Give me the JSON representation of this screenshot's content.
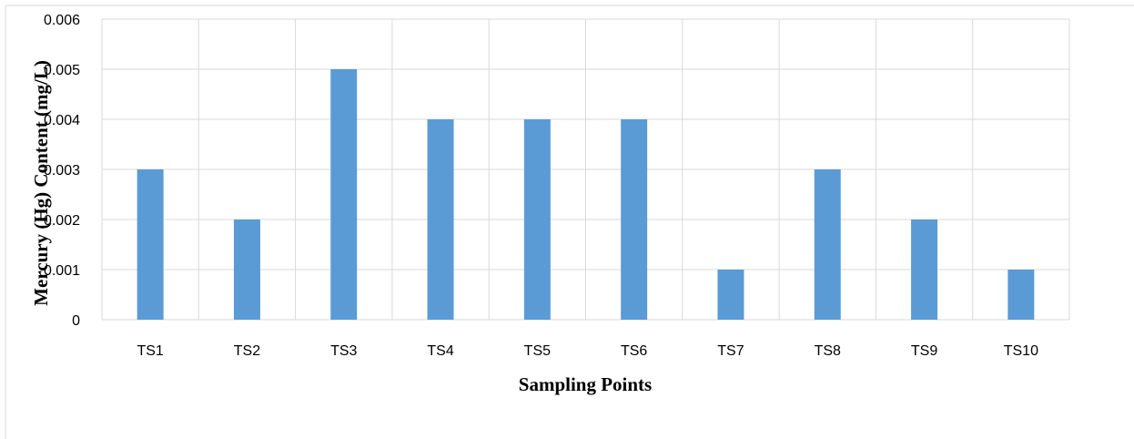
{
  "chart_data": {
    "type": "bar",
    "categories": [
      "TS1",
      "TS2",
      "TS3",
      "TS4",
      "TS5",
      "TS6",
      "TS7",
      "TS8",
      "TS9",
      "TS10"
    ],
    "values": [
      0.003,
      0.002,
      0.005,
      0.004,
      0.004,
      0.004,
      0.001,
      0.003,
      0.002,
      0.001
    ],
    "yticks": [
      "0",
      "0.001",
      "0.002",
      "0.003",
      "0.004",
      "0.005",
      "0.006"
    ],
    "ylim": [
      0,
      0.006
    ],
    "xlabel": "Sampling Points",
    "ylabel": "Mercury (Hg) Content (mg/L)",
    "grid": true,
    "bar_color": "#5B9BD5",
    "grid_color": "#D9D9D9"
  }
}
